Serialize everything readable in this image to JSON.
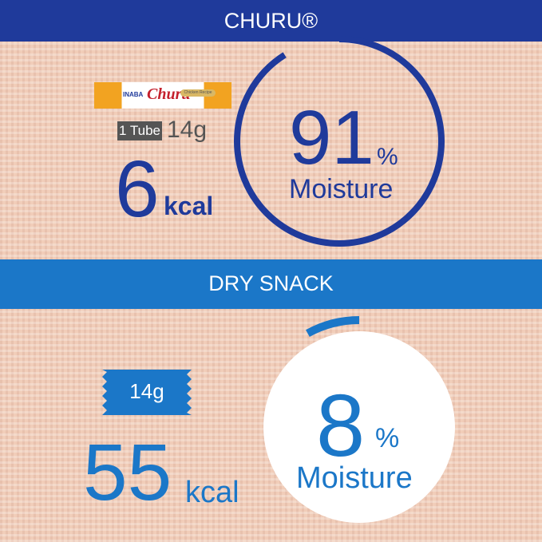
{
  "churu": {
    "title": "CHURU®",
    "tube_brand": "INABA",
    "tube_name": "Churu",
    "tube_flavor": "Chicken Recipe",
    "count_label": "1 Tube",
    "weight": "14g",
    "kcal_value": "6",
    "kcal_unit": "kcal",
    "moisture_value": "91",
    "moisture_percent": 91,
    "percent_sign": "%",
    "moisture_label": "Moisture",
    "color": "#1f3a9b"
  },
  "dry": {
    "title": "DRY SNACK",
    "weight": "14g",
    "kcal_value": "55",
    "kcal_unit": "kcal",
    "moisture_value": "8",
    "moisture_percent": 8,
    "percent_sign": "%",
    "moisture_label": "Moisture",
    "color": "#1b77c8"
  }
}
